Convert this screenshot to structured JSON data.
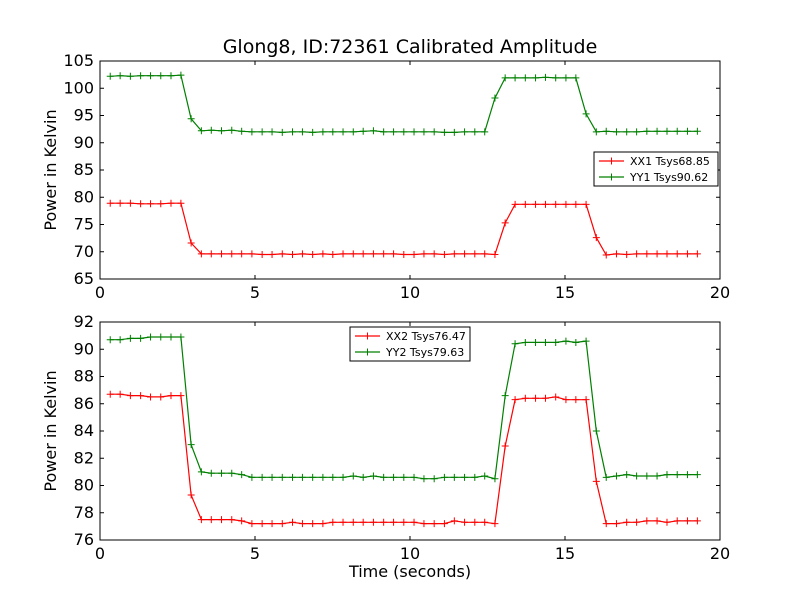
{
  "title": "Glong8, ID:72361 Calibrated Amplitude",
  "chart_data": [
    {
      "type": "line",
      "title": "Glong8, ID:72361 Calibrated Amplitude",
      "xlabel": "",
      "ylabel": "Power in Kelvin",
      "xlim": [
        0,
        20
      ],
      "ylim": [
        65,
        105
      ],
      "xticks": [
        "0",
        "5",
        "10",
        "15",
        "20"
      ],
      "yticks": [
        "65",
        "70",
        "75",
        "80",
        "85",
        "90",
        "95",
        "100",
        "105"
      ],
      "grid": false,
      "legend_position": "center-right",
      "x": [
        0.33,
        0.65,
        0.98,
        1.31,
        1.63,
        1.96,
        2.29,
        2.61,
        2.94,
        3.27,
        3.59,
        3.92,
        4.25,
        4.57,
        4.9,
        5.23,
        5.55,
        5.88,
        6.21,
        6.53,
        6.86,
        7.19,
        7.51,
        7.84,
        8.17,
        8.49,
        8.82,
        9.15,
        9.47,
        9.8,
        10.13,
        10.45,
        10.78,
        11.11,
        11.43,
        11.76,
        12.09,
        12.41,
        12.74,
        13.07,
        13.39,
        13.72,
        14.05,
        14.37,
        14.7,
        15.03,
        15.35,
        15.68,
        16.01,
        16.33,
        16.66,
        16.99,
        17.31,
        17.64,
        17.97,
        18.29,
        18.62,
        18.95,
        19.27
      ],
      "series": [
        {
          "name": "XX1 Tsys68.85",
          "color": "#ff0000",
          "values": [
            78.9,
            78.9,
            78.9,
            78.8,
            78.8,
            78.8,
            78.9,
            78.9,
            71.6,
            69.6,
            69.6,
            69.6,
            69.6,
            69.6,
            69.6,
            69.5,
            69.5,
            69.6,
            69.5,
            69.6,
            69.5,
            69.6,
            69.5,
            69.6,
            69.6,
            69.6,
            69.6,
            69.6,
            69.6,
            69.5,
            69.5,
            69.6,
            69.6,
            69.5,
            69.6,
            69.6,
            69.6,
            69.6,
            69.5,
            75.3,
            78.7,
            78.7,
            78.7,
            78.7,
            78.7,
            78.7,
            78.7,
            78.7,
            72.6,
            69.4,
            69.6,
            69.5,
            69.6,
            69.6,
            69.6,
            69.6,
            69.6,
            69.6,
            69.6
          ]
        },
        {
          "name": "YY1 Tsys90.62",
          "color": "#008000",
          "values": [
            102.2,
            102.3,
            102.2,
            102.3,
            102.3,
            102.3,
            102.3,
            102.4,
            94.4,
            92.2,
            92.3,
            92.2,
            92.3,
            92.1,
            92.0,
            92.0,
            92.0,
            91.9,
            92.0,
            92.0,
            91.9,
            92.0,
            92.0,
            92.0,
            92.0,
            92.1,
            92.2,
            92.0,
            92.0,
            92.0,
            92.0,
            92.0,
            92.0,
            91.9,
            91.9,
            92.0,
            92.0,
            92.0,
            98.2,
            101.9,
            101.9,
            101.9,
            101.9,
            102.0,
            101.9,
            101.9,
            101.9,
            95.3,
            92.0,
            92.1,
            92.0,
            92.0,
            92.0,
            92.1,
            92.1,
            92.1,
            92.1,
            92.1,
            92.1
          ]
        }
      ]
    },
    {
      "type": "line",
      "title": "",
      "xlabel": "Time (seconds)",
      "ylabel": "Power in Kelvin",
      "xlim": [
        0,
        20
      ],
      "ylim": [
        76,
        92
      ],
      "xticks": [
        "0",
        "5",
        "10",
        "15",
        "20"
      ],
      "yticks": [
        "76",
        "78",
        "80",
        "82",
        "84",
        "86",
        "88",
        "90",
        "92"
      ],
      "grid": false,
      "legend_position": "top-center",
      "x": [
        0.33,
        0.65,
        0.98,
        1.31,
        1.63,
        1.96,
        2.29,
        2.61,
        2.94,
        3.27,
        3.59,
        3.92,
        4.25,
        4.57,
        4.9,
        5.23,
        5.55,
        5.88,
        6.21,
        6.53,
        6.86,
        7.19,
        7.51,
        7.84,
        8.17,
        8.49,
        8.82,
        9.15,
        9.47,
        9.8,
        10.13,
        10.45,
        10.78,
        11.11,
        11.43,
        11.76,
        12.09,
        12.41,
        12.74,
        13.07,
        13.39,
        13.72,
        14.05,
        14.37,
        14.7,
        15.03,
        15.35,
        15.68,
        16.01,
        16.33,
        16.66,
        16.99,
        17.31,
        17.64,
        17.97,
        18.29,
        18.62,
        18.95,
        19.27
      ],
      "series": [
        {
          "name": "XX2 Tsys76.47",
          "color": "#ff0000",
          "values": [
            86.7,
            86.7,
            86.6,
            86.6,
            86.5,
            86.5,
            86.6,
            86.6,
            79.3,
            77.5,
            77.5,
            77.5,
            77.5,
            77.4,
            77.2,
            77.2,
            77.2,
            77.2,
            77.3,
            77.2,
            77.2,
            77.2,
            77.3,
            77.3,
            77.3,
            77.3,
            77.3,
            77.3,
            77.3,
            77.3,
            77.3,
            77.2,
            77.2,
            77.2,
            77.4,
            77.3,
            77.3,
            77.3,
            77.2,
            82.9,
            86.3,
            86.4,
            86.4,
            86.4,
            86.5,
            86.3,
            86.3,
            86.3,
            80.3,
            77.2,
            77.2,
            77.3,
            77.3,
            77.4,
            77.4,
            77.3,
            77.4,
            77.4,
            77.4
          ]
        },
        {
          "name": "YY2 Tsys79.63",
          "color": "#008000",
          "values": [
            90.7,
            90.7,
            90.8,
            90.8,
            90.9,
            90.9,
            90.9,
            90.9,
            83.0,
            81.0,
            80.9,
            80.9,
            80.9,
            80.8,
            80.6,
            80.6,
            80.6,
            80.6,
            80.6,
            80.6,
            80.6,
            80.6,
            80.6,
            80.6,
            80.7,
            80.6,
            80.7,
            80.6,
            80.6,
            80.6,
            80.6,
            80.5,
            80.5,
            80.6,
            80.6,
            80.6,
            80.6,
            80.7,
            80.5,
            86.6,
            90.4,
            90.5,
            90.5,
            90.5,
            90.5,
            90.6,
            90.5,
            90.6,
            84.0,
            80.6,
            80.7,
            80.8,
            80.7,
            80.7,
            80.7,
            80.8,
            80.8,
            80.8,
            80.8
          ]
        }
      ]
    }
  ]
}
